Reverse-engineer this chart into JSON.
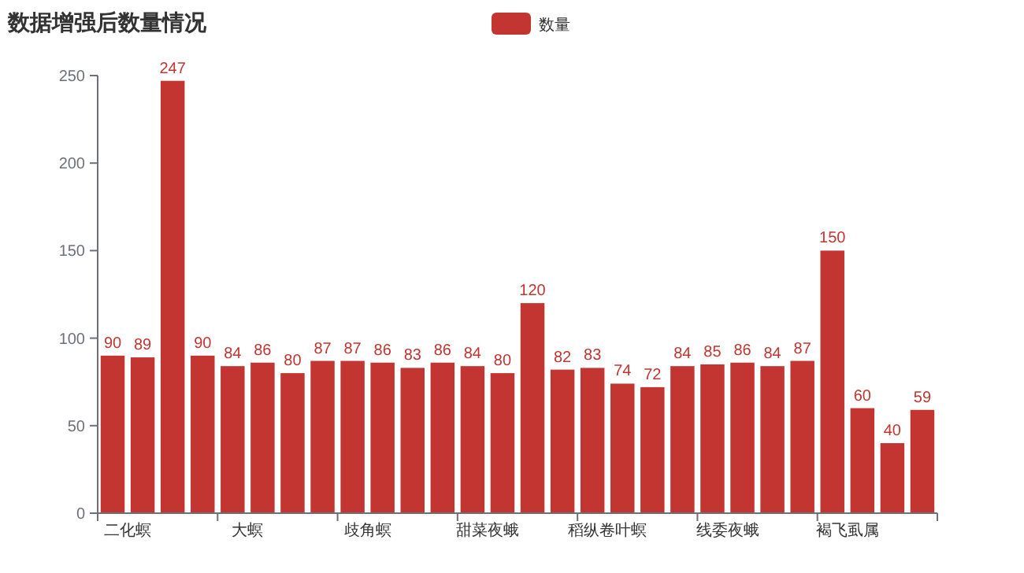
{
  "chart_data": {
    "type": "bar",
    "title": "数据增强后数量情况",
    "categories": [
      "二化螟",
      null,
      null,
      null,
      "大螟",
      null,
      null,
      null,
      "歧角螟",
      null,
      null,
      null,
      "甜菜夜蛾",
      null,
      null,
      null,
      "稻纵卷叶螟",
      null,
      null,
      null,
      "线委夜蛾",
      null,
      null,
      null,
      "褐飞虱属",
      null,
      null,
      null
    ],
    "series": [
      {
        "name": "数量",
        "color": "#c23531",
        "values": [
          90,
          89,
          247,
          90,
          84,
          86,
          80,
          87,
          87,
          86,
          83,
          86,
          84,
          80,
          120,
          82,
          83,
          74,
          72,
          84,
          85,
          86,
          84,
          87,
          150,
          60,
          40,
          59
        ]
      }
    ],
    "ylim": [
      0,
      250
    ],
    "yticks": [
      0,
      50,
      100,
      150,
      200,
      250
    ],
    "data_labels": true,
    "legend": "top",
    "grid": false
  }
}
